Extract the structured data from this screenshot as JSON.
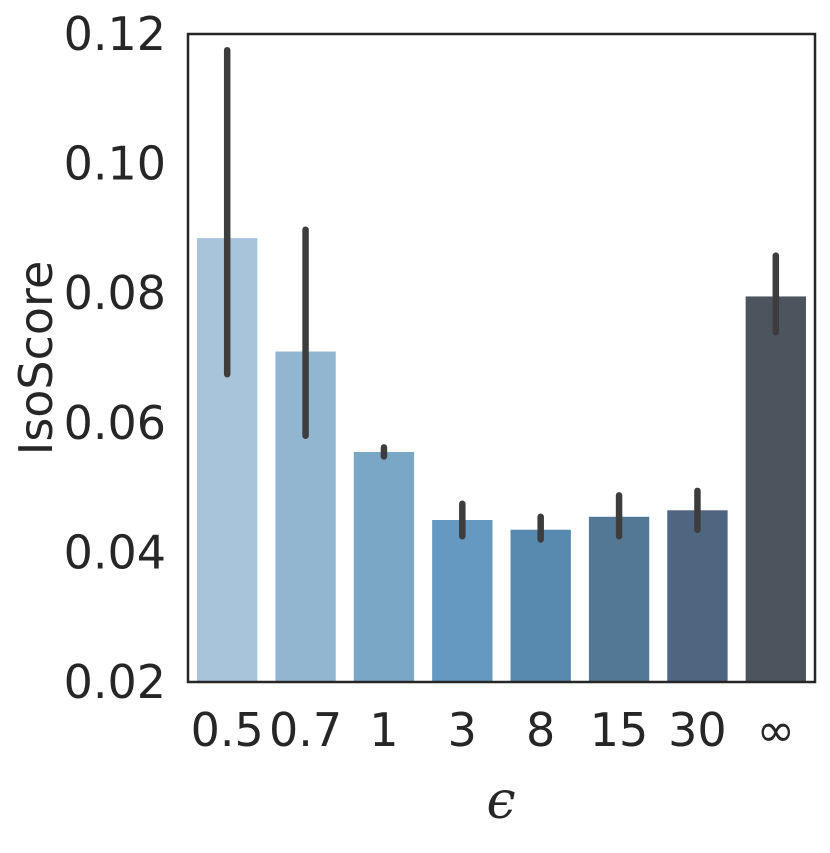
{
  "chart_data": {
    "type": "bar",
    "title": "",
    "xlabel": "ϵ",
    "ylabel": "IsoScore",
    "categories": [
      "0.5",
      "0.7",
      "1",
      "3",
      "8",
      "15",
      "30",
      "∞"
    ],
    "values": [
      0.0885,
      0.071,
      0.0555,
      0.045,
      0.0435,
      0.0455,
      0.0465,
      0.0795
    ],
    "err_low": [
      0.0675,
      0.058,
      0.0548,
      0.0425,
      0.042,
      0.0425,
      0.0435,
      0.074
    ],
    "err_high": [
      0.1175,
      0.0898,
      0.0562,
      0.0475,
      0.0455,
      0.0488,
      0.0495,
      0.0858
    ],
    "colors": [
      "#a7c4da",
      "#92b6d0",
      "#7ba7c7",
      "#6599c1",
      "#5889ae",
      "#537895",
      "#4f6680",
      "#4c555e"
    ],
    "ylim": [
      0.02,
      0.12
    ],
    "yticks": [
      "0.02",
      "0.04",
      "0.06",
      "0.08",
      "0.10",
      "0.12"
    ],
    "grid": false
  }
}
